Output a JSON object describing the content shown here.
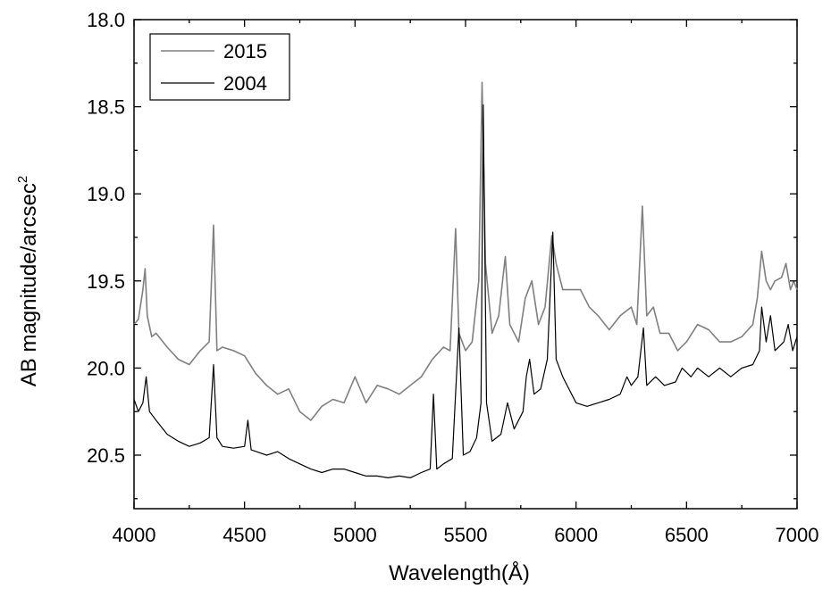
{
  "chart_data": {
    "type": "line",
    "xlabel": "Wavelength(Å)",
    "ylabel": "AB  magnitude/arcsec",
    "ylabel_superscript": "2",
    "xlim": [
      4000,
      7000
    ],
    "ylim": [
      18.0,
      20.8
    ],
    "y_inverted": true,
    "grid": false,
    "legend_position": "top-left",
    "x_ticks": [
      4000,
      4500,
      5000,
      5500,
      6000,
      6500,
      7000
    ],
    "x_tick_labels": [
      "4000",
      "4500",
      "5000",
      "5500",
      "6000",
      "6500",
      "7000"
    ],
    "y_ticks": [
      18.0,
      18.5,
      19.0,
      19.5,
      20.0,
      20.5
    ],
    "y_tick_labels": [
      "18.0",
      "18.5",
      "19.0",
      "19.5",
      "20.0",
      "20.5"
    ],
    "series": [
      {
        "name": "2015",
        "color": "#808080",
        "points": [
          [
            4000,
            19.75
          ],
          [
            4020,
            19.72
          ],
          [
            4040,
            19.55
          ],
          [
            4050,
            19.43
          ],
          [
            4060,
            19.7
          ],
          [
            4080,
            19.82
          ],
          [
            4100,
            19.8
          ],
          [
            4150,
            19.88
          ],
          [
            4200,
            19.95
          ],
          [
            4250,
            19.98
          ],
          [
            4300,
            19.9
          ],
          [
            4340,
            19.85
          ],
          [
            4360,
            19.18
          ],
          [
            4375,
            19.9
          ],
          [
            4400,
            19.88
          ],
          [
            4450,
            19.9
          ],
          [
            4500,
            19.93
          ],
          [
            4550,
            20.03
          ],
          [
            4600,
            20.1
          ],
          [
            4650,
            20.15
          ],
          [
            4700,
            20.12
          ],
          [
            4750,
            20.25
          ],
          [
            4800,
            20.3
          ],
          [
            4850,
            20.22
          ],
          [
            4900,
            20.18
          ],
          [
            4950,
            20.2
          ],
          [
            5000,
            20.05
          ],
          [
            5050,
            20.2
          ],
          [
            5100,
            20.1
          ],
          [
            5150,
            20.12
          ],
          [
            5200,
            20.15
          ],
          [
            5250,
            20.1
          ],
          [
            5300,
            20.05
          ],
          [
            5350,
            19.95
          ],
          [
            5400,
            19.88
          ],
          [
            5430,
            19.9
          ],
          [
            5455,
            19.2
          ],
          [
            5470,
            19.8
          ],
          [
            5500,
            19.9
          ],
          [
            5530,
            19.85
          ],
          [
            5560,
            19.5
          ],
          [
            5575,
            18.36
          ],
          [
            5590,
            19.4
          ],
          [
            5620,
            19.8
          ],
          [
            5650,
            19.7
          ],
          [
            5680,
            19.36
          ],
          [
            5700,
            19.75
          ],
          [
            5740,
            19.85
          ],
          [
            5770,
            19.6
          ],
          [
            5800,
            19.5
          ],
          [
            5830,
            19.75
          ],
          [
            5860,
            19.65
          ],
          [
            5890,
            19.24
          ],
          [
            5910,
            19.4
          ],
          [
            5940,
            19.55
          ],
          [
            5980,
            19.55
          ],
          [
            6020,
            19.55
          ],
          [
            6060,
            19.65
          ],
          [
            6100,
            19.7
          ],
          [
            6150,
            19.78
          ],
          [
            6200,
            19.7
          ],
          [
            6250,
            19.65
          ],
          [
            6275,
            19.75
          ],
          [
            6300,
            19.07
          ],
          [
            6320,
            19.7
          ],
          [
            6350,
            19.65
          ],
          [
            6380,
            19.8
          ],
          [
            6420,
            19.8
          ],
          [
            6460,
            19.9
          ],
          [
            6500,
            19.85
          ],
          [
            6550,
            19.75
          ],
          [
            6600,
            19.78
          ],
          [
            6650,
            19.85
          ],
          [
            6700,
            19.85
          ],
          [
            6750,
            19.82
          ],
          [
            6800,
            19.75
          ],
          [
            6820,
            19.6
          ],
          [
            6840,
            19.33
          ],
          [
            6860,
            19.5
          ],
          [
            6880,
            19.55
          ],
          [
            6900,
            19.5
          ],
          [
            6930,
            19.48
          ],
          [
            6950,
            19.4
          ],
          [
            6970,
            19.55
          ],
          [
            6985,
            19.5
          ],
          [
            7000,
            19.55
          ]
        ]
      },
      {
        "name": "2004",
        "color": "#000000",
        "points": [
          [
            4000,
            20.18
          ],
          [
            4020,
            20.25
          ],
          [
            4040,
            20.2
          ],
          [
            4055,
            20.05
          ],
          [
            4070,
            20.25
          ],
          [
            4100,
            20.3
          ],
          [
            4150,
            20.38
          ],
          [
            4200,
            20.42
          ],
          [
            4250,
            20.45
          ],
          [
            4300,
            20.43
          ],
          [
            4340,
            20.4
          ],
          [
            4360,
            19.98
          ],
          [
            4375,
            20.4
          ],
          [
            4400,
            20.45
          ],
          [
            4450,
            20.46
          ],
          [
            4500,
            20.45
          ],
          [
            4515,
            20.3
          ],
          [
            4530,
            20.47
          ],
          [
            4600,
            20.5
          ],
          [
            4650,
            20.48
          ],
          [
            4700,
            20.52
          ],
          [
            4750,
            20.55
          ],
          [
            4800,
            20.58
          ],
          [
            4850,
            20.6
          ],
          [
            4900,
            20.58
          ],
          [
            4950,
            20.58
          ],
          [
            5000,
            20.6
          ],
          [
            5050,
            20.62
          ],
          [
            5100,
            20.62
          ],
          [
            5150,
            20.63
          ],
          [
            5200,
            20.62
          ],
          [
            5250,
            20.63
          ],
          [
            5300,
            20.6
          ],
          [
            5340,
            20.58
          ],
          [
            5355,
            20.15
          ],
          [
            5370,
            20.58
          ],
          [
            5400,
            20.55
          ],
          [
            5440,
            20.52
          ],
          [
            5470,
            19.77
          ],
          [
            5490,
            20.5
          ],
          [
            5520,
            20.48
          ],
          [
            5550,
            20.4
          ],
          [
            5570,
            20.2
          ],
          [
            5580,
            18.49
          ],
          [
            5595,
            20.2
          ],
          [
            5620,
            20.42
          ],
          [
            5660,
            20.38
          ],
          [
            5690,
            20.2
          ],
          [
            5720,
            20.35
          ],
          [
            5760,
            20.25
          ],
          [
            5775,
            20.05
          ],
          [
            5790,
            19.95
          ],
          [
            5810,
            20.15
          ],
          [
            5840,
            20.12
          ],
          [
            5870,
            19.95
          ],
          [
            5895,
            19.22
          ],
          [
            5910,
            19.95
          ],
          [
            5940,
            20.05
          ],
          [
            5980,
            20.15
          ],
          [
            6000,
            20.2
          ],
          [
            6050,
            20.22
          ],
          [
            6100,
            20.2
          ],
          [
            6150,
            20.18
          ],
          [
            6200,
            20.15
          ],
          [
            6230,
            20.05
          ],
          [
            6250,
            20.1
          ],
          [
            6280,
            20.05
          ],
          [
            6305,
            19.77
          ],
          [
            6320,
            20.1
          ],
          [
            6360,
            20.05
          ],
          [
            6400,
            20.1
          ],
          [
            6450,
            20.08
          ],
          [
            6480,
            20.0
          ],
          [
            6520,
            20.05
          ],
          [
            6550,
            20.0
          ],
          [
            6600,
            20.05
          ],
          [
            6650,
            20.0
          ],
          [
            6700,
            20.05
          ],
          [
            6750,
            20.0
          ],
          [
            6800,
            19.98
          ],
          [
            6830,
            19.9
          ],
          [
            6840,
            19.65
          ],
          [
            6860,
            19.85
          ],
          [
            6880,
            19.7
          ],
          [
            6900,
            19.9
          ],
          [
            6940,
            19.85
          ],
          [
            6960,
            19.75
          ],
          [
            6980,
            19.9
          ],
          [
            7000,
            19.82
          ]
        ]
      }
    ]
  }
}
